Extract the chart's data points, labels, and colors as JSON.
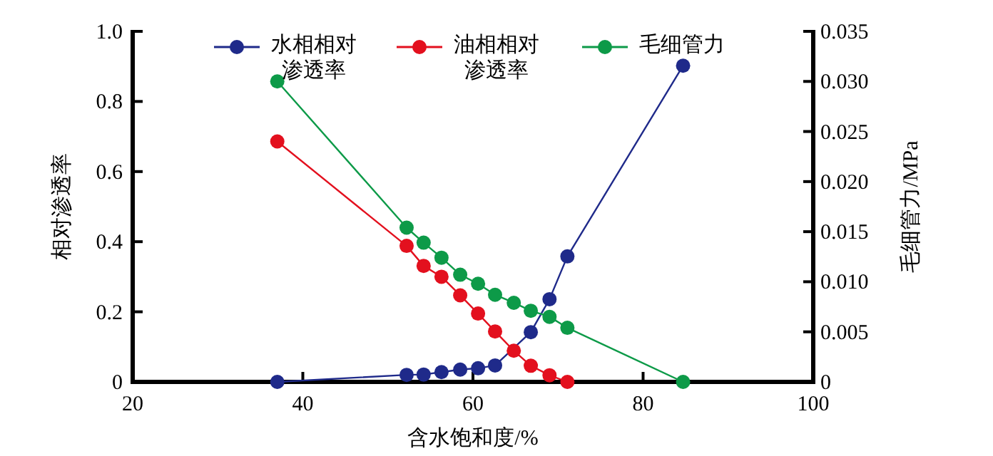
{
  "chart_data": {
    "type": "line",
    "xlabel": "含水饱和度/%",
    "ylabel": "相对渗透率",
    "y2label": "毛细管力/MPa",
    "xlim": [
      20,
      100
    ],
    "xticks": [
      20,
      40,
      60,
      80,
      100
    ],
    "ylim": [
      0,
      1
    ],
    "yticks": [
      0,
      0.2,
      0.4,
      0.6,
      0.8,
      {
        "value": 1,
        "label": "1.0"
      }
    ],
    "y2lim": [
      0,
      0.035
    ],
    "y2ticks": [
      0,
      {
        "value": 0.005,
        "label": "0.005"
      },
      {
        "value": 0.01,
        "label": "0.010"
      },
      {
        "value": 0.015,
        "label": "0.015"
      },
      {
        "value": 0.02,
        "label": "0.020"
      },
      {
        "value": 0.025,
        "label": "0.025"
      },
      {
        "value": 0.03,
        "label": "0.030"
      },
      {
        "value": 0.035,
        "label": "0.035"
      }
    ],
    "marker": "circle",
    "legend": "top",
    "grid": false,
    "series": [
      {
        "name": "水相相对渗透率",
        "color": "#1f2a8a",
        "x": [
          37.0,
          52.2,
          54.2,
          56.3,
          58.5,
          60.6,
          62.6,
          66.8,
          69.0,
          71.1,
          84.7
        ],
        "values": [
          0,
          0.02,
          0.021,
          0.028,
          0.035,
          0.039,
          0.047,
          0.142,
          0.236,
          0.358,
          0.902
        ]
      },
      {
        "name": "油相相对渗透率",
        "color": "#e3101e",
        "x": [
          37.0,
          52.2,
          54.2,
          56.3,
          58.5,
          60.6,
          62.6,
          64.8,
          66.8,
          69.0,
          71.1
        ],
        "values": [
          0.686,
          0.388,
          0.331,
          0.3,
          0.247,
          0.195,
          0.144,
          0.089,
          0.046,
          0.019,
          0
        ]
      },
      {
        "name": "毛细管力",
        "color": "#0d9a48",
        "axis": "y2",
        "x": [
          37.0,
          52.2,
          54.2,
          56.3,
          58.5,
          60.6,
          62.6,
          64.8,
          66.8,
          69.0,
          71.1,
          84.7
        ],
        "values": [
          0.03,
          0.0154,
          0.0139,
          0.0124,
          0.0107,
          0.0098,
          0.0087,
          0.0079,
          0.0071,
          0.0065,
          0.0054,
          0
        ]
      }
    ]
  }
}
